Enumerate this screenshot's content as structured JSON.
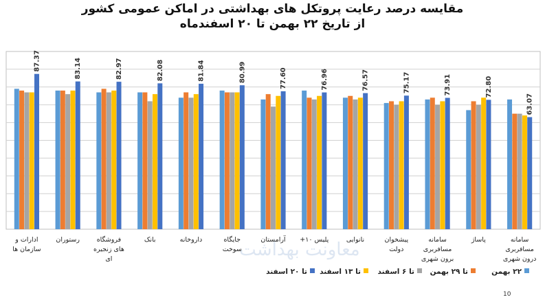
{
  "title_line1": "مقایسه درصد رعایت پروتکل های بهداشتی در اماکن عمومی کشور",
  "title_line2": "از تاریخ ۲۲ بهمن تا ۲۰ اسفندماه",
  "watermark": "معاونت بهداشت",
  "page_number": "10",
  "chart_data": {
    "type": "bar",
    "ylim": [
      0,
      100
    ],
    "grid": true,
    "legend_position": "bottom",
    "categories": [
      "سامانه مسافربری درون شهری",
      "پاساژ",
      "سامانه مسافربری برون شهری",
      "پیشخوان دولت",
      "نانوایی",
      "پلیس ۱۰+",
      "آرامستان",
      "جایگاه سوخت",
      "داروخانه",
      "بانک",
      "فروشگاه های زنجیره ای",
      "رستوران",
      "ادارات و سازمان ها"
    ],
    "series": [
      {
        "name": "۲۲ بهمن",
        "color": "#5b9bd5",
        "values": [
          73,
          67,
          73,
          71,
          74,
          78,
          73,
          78,
          74,
          77,
          77,
          78,
          79
        ]
      },
      {
        "name": "تا ۲۹ بهمن",
        "color": "#ed7d31",
        "values": [
          65,
          72,
          74,
          72,
          75,
          74,
          76,
          77,
          77,
          77,
          79,
          78,
          78
        ]
      },
      {
        "name": "تا ۶ اسفند",
        "color": "#a5a5a5",
        "values": [
          65,
          70,
          70,
          70,
          73,
          73,
          69,
          77,
          74,
          72,
          77,
          76,
          77
        ]
      },
      {
        "name": "تا ۱۳ اسفند",
        "color": "#ffc000",
        "values": [
          64,
          74,
          72,
          72,
          74,
          75,
          75,
          77,
          76,
          76,
          78,
          78,
          77
        ]
      },
      {
        "name": "تا ۲۰ اسفند",
        "color": "#4472c4",
        "values": [
          63.07,
          72.8,
          73.91,
          75.17,
          76.57,
          76.96,
          77.6,
          80.99,
          81.84,
          82.08,
          82.97,
          83.14,
          87.37
        ]
      }
    ],
    "data_labels": [
      "63.07",
      "72.80",
      "73.91",
      "75.17",
      "76.57",
      "76.96",
      "77.60",
      "80.99",
      "81.84",
      "82.08",
      "82.97",
      "83.14",
      "87.37"
    ]
  }
}
